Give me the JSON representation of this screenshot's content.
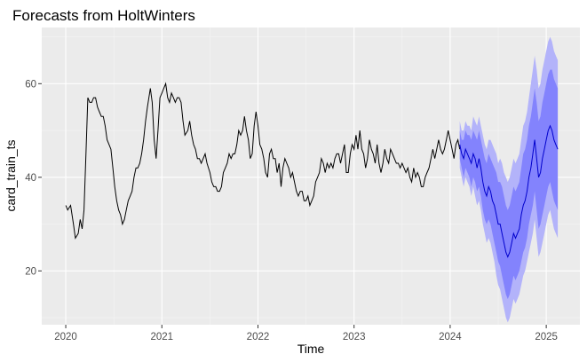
{
  "chart_data": {
    "type": "line",
    "title": "Forecasts from HoltWinters",
    "xlabel": "Time",
    "ylabel": "card_train_ts",
    "xlim": [
      2019.75,
      2025.35
    ],
    "ylim": [
      8.5,
      72
    ],
    "x_ticks": [
      2020,
      2021,
      2022,
      2023,
      2024,
      2025
    ],
    "x_tick_labels": [
      "2020",
      "2021",
      "2022",
      "2023",
      "2024",
      "2025"
    ],
    "y_ticks": [
      20,
      40,
      60
    ],
    "y_tick_labels": [
      "20",
      "40",
      "60"
    ],
    "grid": true,
    "background": "#ebebeb",
    "history_color": "#000000",
    "forecast_color": "#0000cc",
    "band80_color": "#5b5bff",
    "band95_color": "#b3b3fa",
    "history": {
      "x": [
        2020.0,
        2020.02,
        2020.05,
        2020.08,
        2020.1,
        2020.13,
        2020.15,
        2020.17,
        2020.19,
        2020.21,
        2020.23,
        2020.25,
        2020.27,
        2020.29,
        2020.31,
        2020.33,
        2020.35,
        2020.37,
        2020.39,
        2020.41,
        2020.43,
        2020.45,
        2020.47,
        2020.49,
        2020.51,
        2020.53,
        2020.55,
        2020.57,
        2020.59,
        2020.61,
        2020.63,
        2020.65,
        2020.67,
        2020.69,
        2020.71,
        2020.73,
        2020.75,
        2020.77,
        2020.79,
        2020.81,
        2020.83,
        2020.85,
        2020.88,
        2020.9,
        2020.92,
        2020.94,
        2020.96,
        2020.98,
        2021.0,
        2021.02,
        2021.04,
        2021.06,
        2021.08,
        2021.1,
        2021.12,
        2021.14,
        2021.16,
        2021.18,
        2021.2,
        2021.22,
        2021.24,
        2021.27,
        2021.29,
        2021.31,
        2021.33,
        2021.35,
        2021.37,
        2021.39,
        2021.41,
        2021.43,
        2021.45,
        2021.47,
        2021.5,
        2021.52,
        2021.54,
        2021.56,
        2021.58,
        2021.6,
        2021.62,
        2021.64,
        2021.66,
        2021.68,
        2021.7,
        2021.72,
        2021.74,
        2021.76,
        2021.78,
        2021.8,
        2021.82,
        2021.84,
        2021.86,
        2021.88,
        2021.9,
        2021.92,
        2021.94,
        2021.96,
        2021.98,
        2022.0,
        2022.02,
        2022.04,
        2022.06,
        2022.08,
        2022.1,
        2022.12,
        2022.14,
        2022.16,
        2022.18,
        2022.2,
        2022.22,
        2022.24,
        2022.26,
        2022.28,
        2022.3,
        2022.32,
        2022.34,
        2022.36,
        2022.38,
        2022.4,
        2022.42,
        2022.44,
        2022.46,
        2022.48,
        2022.5,
        2022.52,
        2022.54,
        2022.56,
        2022.58,
        2022.6,
        2022.62,
        2022.64,
        2022.66,
        2022.68,
        2022.7,
        2022.72,
        2022.74,
        2022.76,
        2022.78,
        2022.8,
        2022.82,
        2022.84,
        2022.86,
        2022.88,
        2022.9,
        2022.92,
        2022.94,
        2022.96,
        2022.98,
        2023.0,
        2023.02,
        2023.04,
        2023.06,
        2023.08,
        2023.1,
        2023.12,
        2023.14,
        2023.16,
        2023.18,
        2023.2,
        2023.22,
        2023.24,
        2023.26,
        2023.28,
        2023.3,
        2023.32,
        2023.34,
        2023.36,
        2023.38,
        2023.4,
        2023.42,
        2023.44,
        2023.46,
        2023.48,
        2023.5,
        2023.52,
        2023.54,
        2023.56,
        2023.58,
        2023.6,
        2023.62,
        2023.64,
        2023.66,
        2023.68,
        2023.7,
        2023.72,
        2023.74,
        2023.76,
        2023.78,
        2023.8,
        2023.82,
        2023.84,
        2023.86,
        2023.88,
        2023.9,
        2023.92,
        2023.94,
        2023.96,
        2023.98,
        2024.0,
        2024.02,
        2024.04,
        2024.06,
        2024.08,
        2024.1
      ],
      "y": [
        34,
        33,
        34,
        30,
        27,
        28,
        31,
        29,
        33,
        45,
        57,
        56,
        56,
        57,
        57,
        55,
        54,
        53,
        53,
        51,
        48,
        47,
        46,
        42,
        38,
        35,
        33,
        32,
        30,
        31,
        33,
        35,
        36,
        37,
        40,
        42,
        42,
        43,
        45,
        48,
        52,
        55,
        59,
        56,
        48,
        44,
        50,
        57,
        58,
        59,
        60,
        57,
        56,
        58,
        57,
        56,
        57,
        57,
        56,
        52,
        49,
        50,
        52,
        49,
        47,
        46,
        44,
        44,
        43,
        44,
        45,
        43,
        41,
        39,
        38,
        38,
        37,
        37,
        38,
        41,
        42,
        43,
        45,
        44,
        45,
        45,
        47,
        50,
        49,
        50,
        53,
        50,
        48,
        44,
        45,
        51,
        54,
        51,
        47,
        46,
        44,
        41,
        40,
        45,
        46,
        44,
        44,
        41,
        43,
        38,
        42,
        44,
        43,
        42,
        40,
        41,
        39,
        37,
        36,
        37,
        37,
        35,
        35,
        36,
        34,
        35,
        36,
        39,
        40,
        41,
        44,
        43,
        41,
        43,
        42,
        43,
        42,
        44,
        45,
        45,
        43,
        45,
        47,
        41,
        41,
        45,
        47,
        46,
        49,
        46,
        50,
        46,
        45,
        42,
        44,
        48,
        46,
        45,
        43,
        47,
        43,
        41,
        43,
        46,
        44,
        43,
        46,
        45,
        44,
        43,
        43,
        42,
        43,
        42,
        41,
        42,
        40,
        39,
        42,
        40,
        41,
        40,
        38,
        38,
        40,
        41,
        42,
        44,
        46,
        44,
        46,
        48,
        46,
        45,
        46,
        48,
        50,
        48,
        46,
        44,
        47,
        48,
        46
      ]
    },
    "forecast": {
      "x": [
        2024.1,
        2024.12,
        2024.14,
        2024.16,
        2024.18,
        2024.2,
        2024.22,
        2024.24,
        2024.26,
        2024.28,
        2024.3,
        2024.32,
        2024.34,
        2024.36,
        2024.38,
        2024.4,
        2024.42,
        2024.44,
        2024.46,
        2024.48,
        2024.5,
        2024.52,
        2024.54,
        2024.56,
        2024.58,
        2024.6,
        2024.62,
        2024.64,
        2024.66,
        2024.68,
        2024.7,
        2024.72,
        2024.74,
        2024.76,
        2024.78,
        2024.8,
        2024.82,
        2024.84,
        2024.86,
        2024.88,
        2024.9,
        2024.92,
        2024.94,
        2024.96,
        2024.98,
        2025.0,
        2025.02,
        2025.04,
        2025.06,
        2025.08,
        2025.1,
        2025.12
      ],
      "mean": [
        47,
        45,
        44,
        46,
        45,
        44,
        43,
        45,
        44,
        42,
        44,
        42,
        39,
        37,
        36,
        38,
        37,
        35,
        34,
        32,
        30,
        30,
        28,
        26,
        24,
        23,
        24,
        26,
        28,
        27,
        28,
        29,
        32,
        34,
        35,
        37,
        40,
        42,
        45,
        48,
        44,
        40,
        41,
        44,
        46,
        48,
        50,
        51,
        50,
        48,
        47,
        46
      ],
      "lo80": [
        44,
        42,
        40,
        42,
        41,
        40,
        38,
        40,
        39,
        37,
        38,
        36,
        33,
        31,
        30,
        31,
        30,
        28,
        26,
        24,
        22,
        21,
        19,
        17,
        15,
        14,
        15,
        17,
        19,
        18,
        19,
        20,
        22,
        24,
        25,
        27,
        30,
        32,
        34,
        37,
        33,
        29,
        30,
        32,
        34,
        36,
        38,
        39,
        37,
        35,
        34,
        33
      ],
      "hi80": [
        50,
        48,
        48,
        50,
        49,
        49,
        48,
        50,
        49,
        48,
        50,
        48,
        46,
        44,
        43,
        45,
        44,
        43,
        42,
        41,
        39,
        39,
        38,
        36,
        34,
        33,
        34,
        36,
        38,
        37,
        38,
        39,
        42,
        45,
        46,
        48,
        51,
        53,
        56,
        59,
        56,
        52,
        53,
        56,
        58,
        60,
        62,
        63,
        63,
        61,
        60,
        59
      ],
      "lo95": [
        42,
        40,
        38,
        40,
        39,
        38,
        36,
        38,
        36,
        34,
        35,
        33,
        30,
        28,
        26,
        27,
        26,
        24,
        22,
        19,
        17,
        16,
        14,
        12,
        10,
        9,
        10,
        12,
        14,
        13,
        14,
        15,
        17,
        19,
        20,
        22,
        24,
        26,
        28,
        31,
        27,
        23,
        24,
        26,
        28,
        30,
        32,
        33,
        31,
        29,
        28,
        27
      ],
      "hi95": [
        52,
        50,
        50,
        52,
        51,
        51,
        50,
        53,
        52,
        51,
        53,
        51,
        49,
        47,
        46,
        48,
        48,
        47,
        46,
        45,
        43,
        44,
        43,
        41,
        40,
        39,
        40,
        42,
        44,
        43,
        44,
        45,
        48,
        51,
        52,
        54,
        57,
        60,
        63,
        66,
        63,
        59,
        60,
        63,
        65,
        67,
        69,
        70,
        69,
        67,
        66,
        65
      ]
    }
  }
}
